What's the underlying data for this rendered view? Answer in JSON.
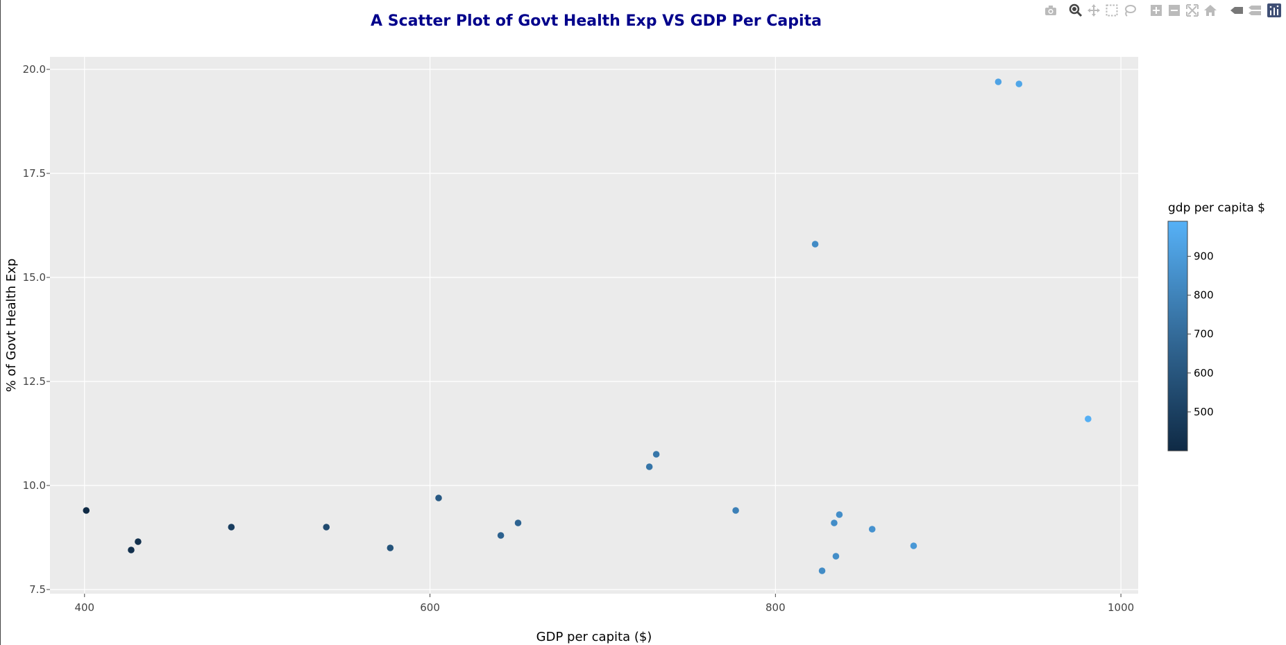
{
  "chart_data": {
    "type": "scatter",
    "title": "A Scatter Plot of Govt Health Exp VS GDP Per Capita",
    "xlabel": "GDP per capita ($)",
    "ylabel": "% of Govt Health Exp",
    "xlim": [
      380,
      1010
    ],
    "ylim": [
      7.4,
      20.3
    ],
    "xticks": [
      400,
      600,
      800,
      1000
    ],
    "xtick_labels": [
      "400",
      "600",
      "800",
      "1000"
    ],
    "yticks": [
      7.5,
      10,
      12.5,
      15,
      17.5,
      20
    ],
    "ytick_labels": [
      "7.5",
      "10.0",
      "12.5",
      "15.0",
      "17.5",
      "20.0"
    ],
    "grid": true,
    "colorbar": {
      "title": "gdp per capita $",
      "range": [
        400,
        990
      ],
      "ticks": [
        500,
        600,
        700,
        800,
        900
      ],
      "tick_labels": [
        "500",
        "600",
        "700",
        "800",
        "900"
      ],
      "colors": [
        "#0f2a45",
        "#56b1f7"
      ]
    },
    "points": [
      {
        "x": 401,
        "y": 9.4
      },
      {
        "x": 427,
        "y": 8.45
      },
      {
        "x": 431,
        "y": 8.65
      },
      {
        "x": 485,
        "y": 9.0
      },
      {
        "x": 540,
        "y": 9.0
      },
      {
        "x": 577,
        "y": 8.5
      },
      {
        "x": 605,
        "y": 9.7
      },
      {
        "x": 641,
        "y": 8.8
      },
      {
        "x": 651,
        "y": 9.1
      },
      {
        "x": 727,
        "y": 10.45
      },
      {
        "x": 731,
        "y": 10.75
      },
      {
        "x": 777,
        "y": 9.4
      },
      {
        "x": 823,
        "y": 15.8
      },
      {
        "x": 827,
        "y": 7.95
      },
      {
        "x": 834,
        "y": 9.1
      },
      {
        "x": 835,
        "y": 8.3
      },
      {
        "x": 837,
        "y": 9.3
      },
      {
        "x": 856,
        "y": 8.95
      },
      {
        "x": 880,
        "y": 8.55
      },
      {
        "x": 929,
        "y": 19.7
      },
      {
        "x": 941,
        "y": 19.65
      },
      {
        "x": 981,
        "y": 11.6
      }
    ]
  },
  "modebar": {
    "buttons": [
      "camera-icon",
      "zoom-icon",
      "pan-icon",
      "box-select-icon",
      "lasso-select-icon",
      "zoom-in-icon",
      "zoom-out-icon",
      "autoscale-icon",
      "reset-axes-icon",
      "spike-lines-icon",
      "hover-compare-icon",
      "plotly-logo-icon"
    ]
  }
}
